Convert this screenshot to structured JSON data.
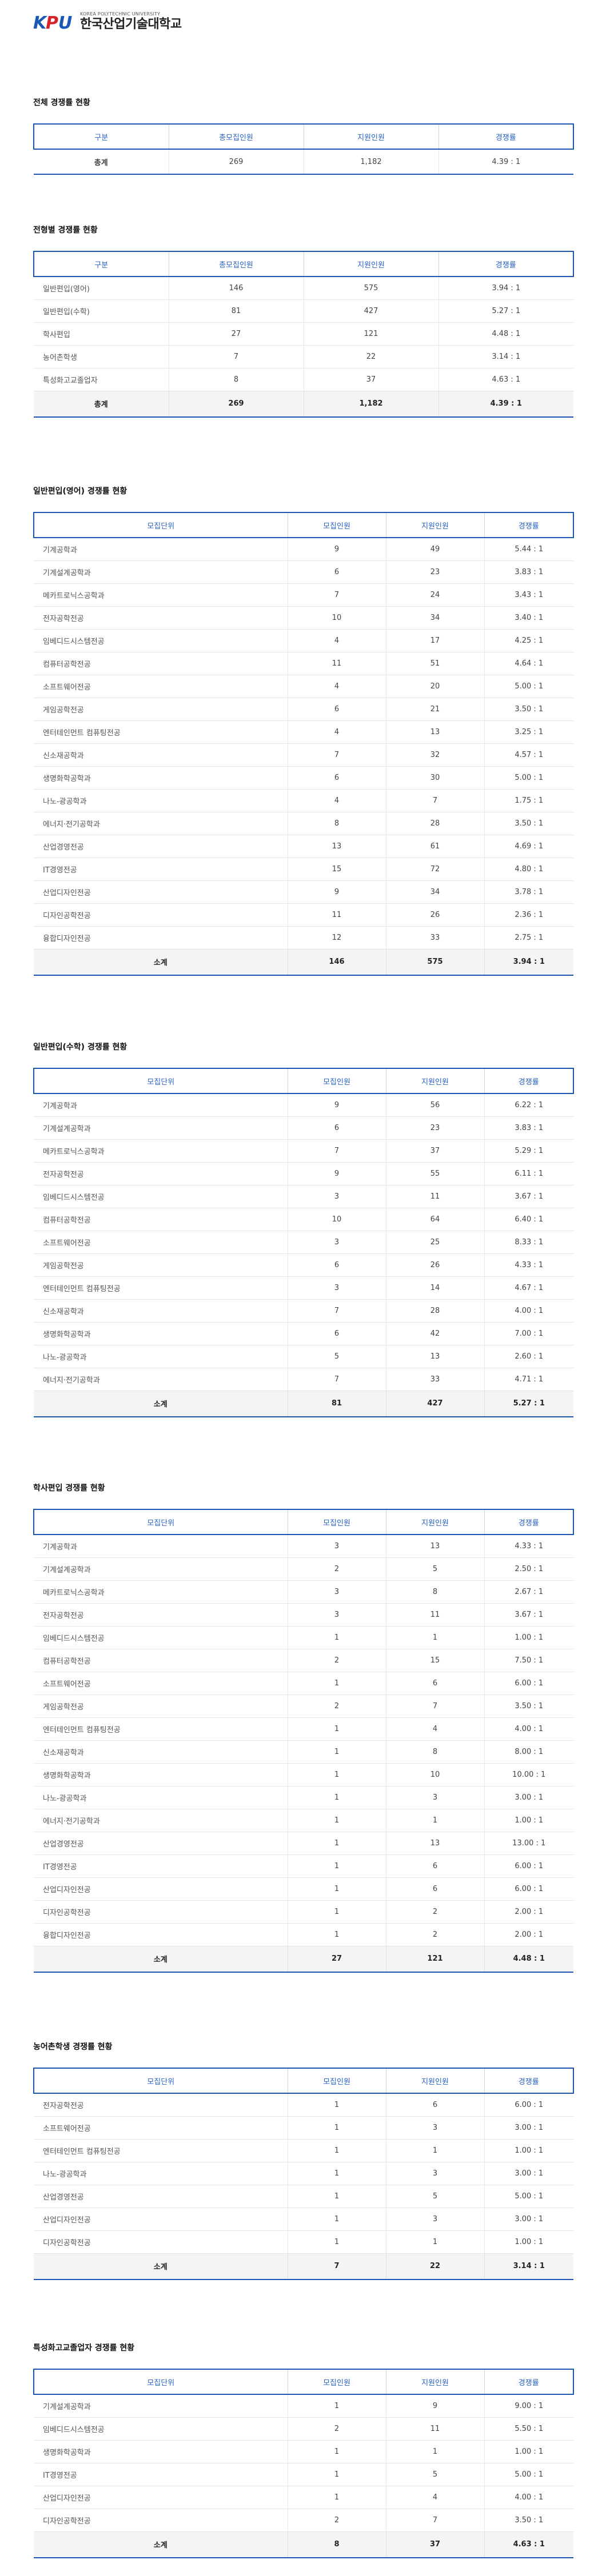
{
  "header": {
    "logo_mark": "KPU",
    "logo_sub": "KOREA POLYTECHNIC UNIVERSITY",
    "logo_name": "한국산업기술대학교"
  },
  "colors": {
    "accent": "#1c56b0",
    "header_text": "#2a63c2",
    "logo_blue": "#1b57b7",
    "logo_red": "#d4242a"
  },
  "overall": {
    "title": "전체 경쟁률 현황",
    "headers": [
      "구분",
      "총모집인원",
      "지원인원",
      "경쟁률"
    ],
    "rows": [
      [
        "총계",
        "269",
        "1,182",
        "4.39 : 1"
      ]
    ]
  },
  "by_type": {
    "title": "전형별 경쟁률 현황",
    "headers": [
      "구분",
      "총모집인원",
      "지원인원",
      "경쟁률"
    ],
    "rows": [
      [
        "일반편입(영어)",
        "146",
        "575",
        "3.94 : 1"
      ],
      [
        "일반편입(수학)",
        "81",
        "427",
        "5.27 : 1"
      ],
      [
        "학사편입",
        "27",
        "121",
        "4.48 : 1"
      ],
      [
        "농어촌학생",
        "7",
        "22",
        "3.14 : 1"
      ],
      [
        "특성화고교졸업자",
        "8",
        "37",
        "4.63 : 1"
      ]
    ],
    "total": [
      "총계",
      "269",
      "1,182",
      "4.39 : 1"
    ]
  },
  "english": {
    "title": "일반편입(영어) 경쟁률 현황",
    "headers": [
      "모집단위",
      "모집인원",
      "지원인원",
      "경쟁률"
    ],
    "rows": [
      [
        "기계공학과",
        "9",
        "49",
        "5.44 : 1"
      ],
      [
        "기계설계공학과",
        "6",
        "23",
        "3.83 : 1"
      ],
      [
        "메카트로닉스공학과",
        "7",
        "24",
        "3.43 : 1"
      ],
      [
        "전자공학전공",
        "10",
        "34",
        "3.40 : 1"
      ],
      [
        "임베디드시스템전공",
        "4",
        "17",
        "4.25 : 1"
      ],
      [
        "컴퓨터공학전공",
        "11",
        "51",
        "4.64 : 1"
      ],
      [
        "소프트웨어전공",
        "4",
        "20",
        "5.00 : 1"
      ],
      [
        "게임공학전공",
        "6",
        "21",
        "3.50 : 1"
      ],
      [
        "엔터테인먼트 컴퓨팅전공",
        "4",
        "13",
        "3.25 : 1"
      ],
      [
        "신소재공학과",
        "7",
        "32",
        "4.57 : 1"
      ],
      [
        "생명화학공학과",
        "6",
        "30",
        "5.00 : 1"
      ],
      [
        "나노-광공학과",
        "4",
        "7",
        "1.75 : 1"
      ],
      [
        "에너지·전기공학과",
        "8",
        "28",
        "3.50 : 1"
      ],
      [
        "산업경영전공",
        "13",
        "61",
        "4.69 : 1"
      ],
      [
        "IT경영전공",
        "15",
        "72",
        "4.80 : 1"
      ],
      [
        "산업디자인전공",
        "9",
        "34",
        "3.78 : 1"
      ],
      [
        "디자인공학전공",
        "11",
        "26",
        "2.36 : 1"
      ],
      [
        "융합디자인전공",
        "12",
        "33",
        "2.75 : 1"
      ]
    ],
    "total": [
      "소계",
      "146",
      "575",
      "3.94 : 1"
    ]
  },
  "math": {
    "title": "일반편입(수학) 경쟁률 현황",
    "headers": [
      "모집단위",
      "모집인원",
      "지원인원",
      "경쟁률"
    ],
    "rows": [
      [
        "기계공학과",
        "9",
        "56",
        "6.22 : 1"
      ],
      [
        "기계설계공학과",
        "6",
        "23",
        "3.83 : 1"
      ],
      [
        "메카트로닉스공학과",
        "7",
        "37",
        "5.29 : 1"
      ],
      [
        "전자공학전공",
        "9",
        "55",
        "6.11 : 1"
      ],
      [
        "임베디드시스템전공",
        "3",
        "11",
        "3.67 : 1"
      ],
      [
        "컴퓨터공학전공",
        "10",
        "64",
        "6.40 : 1"
      ],
      [
        "소프트웨어전공",
        "3",
        "25",
        "8.33 : 1"
      ],
      [
        "게임공학전공",
        "6",
        "26",
        "4.33 : 1"
      ],
      [
        "엔터테인먼트 컴퓨팅전공",
        "3",
        "14",
        "4.67 : 1"
      ],
      [
        "신소재공학과",
        "7",
        "28",
        "4.00 : 1"
      ],
      [
        "생명화학공학과",
        "6",
        "42",
        "7.00 : 1"
      ],
      [
        "나노-광공학과",
        "5",
        "13",
        "2.60 : 1"
      ],
      [
        "에너지·전기공학과",
        "7",
        "33",
        "4.71 : 1"
      ]
    ],
    "total": [
      "소계",
      "81",
      "427",
      "5.27 : 1"
    ]
  },
  "bachelor": {
    "title": "학사편입 경쟁률 현황",
    "headers": [
      "모집단위",
      "모집인원",
      "지원인원",
      "경쟁률"
    ],
    "rows": [
      [
        "기계공학과",
        "3",
        "13",
        "4.33 : 1"
      ],
      [
        "기계설계공학과",
        "2",
        "5",
        "2.50 : 1"
      ],
      [
        "메카트로닉스공학과",
        "3",
        "8",
        "2.67 : 1"
      ],
      [
        "전자공학전공",
        "3",
        "11",
        "3.67 : 1"
      ],
      [
        "임베디드시스템전공",
        "1",
        "1",
        "1.00 : 1"
      ],
      [
        "컴퓨터공학전공",
        "2",
        "15",
        "7.50 : 1"
      ],
      [
        "소프트웨어전공",
        "1",
        "6",
        "6.00 : 1"
      ],
      [
        "게임공학전공",
        "2",
        "7",
        "3.50 : 1"
      ],
      [
        "엔터테인먼트 컴퓨팅전공",
        "1",
        "4",
        "4.00 : 1"
      ],
      [
        "신소재공학과",
        "1",
        "8",
        "8.00 : 1"
      ],
      [
        "생명화학공학과",
        "1",
        "10",
        "10.00 : 1"
      ],
      [
        "나노-광공학과",
        "1",
        "3",
        "3.00 : 1"
      ],
      [
        "에너지·전기공학과",
        "1",
        "1",
        "1.00 : 1"
      ],
      [
        "산업경영전공",
        "1",
        "13",
        "13.00 : 1"
      ],
      [
        "IT경영전공",
        "1",
        "6",
        "6.00 : 1"
      ],
      [
        "산업디자인전공",
        "1",
        "6",
        "6.00 : 1"
      ],
      [
        "디자인공학전공",
        "1",
        "2",
        "2.00 : 1"
      ],
      [
        "융합디자인전공",
        "1",
        "2",
        "2.00 : 1"
      ]
    ],
    "total": [
      "소계",
      "27",
      "121",
      "4.48 : 1"
    ]
  },
  "rural": {
    "title": "농어촌학생 경쟁률 현황",
    "headers": [
      "모집단위",
      "모집인원",
      "지원인원",
      "경쟁률"
    ],
    "rows": [
      [
        "전자공학전공",
        "1",
        "6",
        "6.00 : 1"
      ],
      [
        "소프트웨어전공",
        "1",
        "3",
        "3.00 : 1"
      ],
      [
        "엔터테인먼트 컴퓨팅전공",
        "1",
        "1",
        "1.00 : 1"
      ],
      [
        "나노-광공학과",
        "1",
        "3",
        "3.00 : 1"
      ],
      [
        "산업경영전공",
        "1",
        "5",
        "5.00 : 1"
      ],
      [
        "산업디자인전공",
        "1",
        "3",
        "3.00 : 1"
      ],
      [
        "디자인공학전공",
        "1",
        "1",
        "1.00 : 1"
      ]
    ],
    "total": [
      "소계",
      "7",
      "22",
      "3.14 : 1"
    ]
  },
  "vocational": {
    "title": "특성화고교졸업자 경쟁률 현황",
    "headers": [
      "모집단위",
      "모집인원",
      "지원인원",
      "경쟁률"
    ],
    "rows": [
      [
        "기계설계공학과",
        "1",
        "9",
        "9.00 : 1"
      ],
      [
        "임베디드시스템전공",
        "2",
        "11",
        "5.50 : 1"
      ],
      [
        "생명화학공학과",
        "1",
        "1",
        "1.00 : 1"
      ],
      [
        "IT경영전공",
        "1",
        "5",
        "5.00 : 1"
      ],
      [
        "산업디자인전공",
        "1",
        "4",
        "4.00 : 1"
      ],
      [
        "디자인공학전공",
        "2",
        "7",
        "3.50 : 1"
      ]
    ],
    "total": [
      "소계",
      "8",
      "37",
      "4.63 : 1"
    ]
  }
}
